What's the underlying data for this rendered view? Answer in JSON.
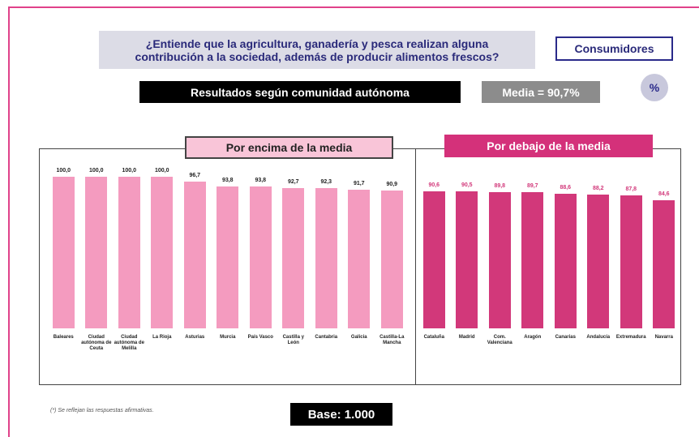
{
  "header": {
    "question": "¿Entiende que la agricultura, ganadería y pesca realizan alguna contribución a la sociedad, además de producir alimentos frescos?",
    "audience": "Consumidores",
    "subtitle": "Resultados según comunidad autónoma",
    "mean": "Media = 90,7%",
    "unit": "%"
  },
  "footnote": "(*) Se reflejan las respuestas afirmativas.",
  "base": "Base: 1.000",
  "chart_data": [
    {
      "type": "bar",
      "title": "Por encima de la media",
      "color": "#f49bbf",
      "categories": [
        "Baleares",
        "Ciudad autónoma de Ceuta",
        "Ciudad autónoma de Melilla",
        "La Rioja",
        "Asturias",
        "Murcia",
        "País Vasco",
        "Castilla y León",
        "Cantabria",
        "Galicia",
        "Castilla-La Mancha"
      ],
      "values": [
        100.0,
        100.0,
        100.0,
        100.0,
        96.7,
        93.8,
        93.8,
        92.7,
        92.3,
        91.7,
        90.9
      ],
      "value_labels": [
        "100,0",
        "100,0",
        "100,0",
        "100,0",
        "96,7",
        "93,8",
        "93,8",
        "92,7",
        "92,3",
        "91,7",
        "90,9"
      ]
    },
    {
      "type": "bar",
      "title": "Por debajo de la media",
      "color": "#d2387a",
      "categories": [
        "Cataluña",
        "Madrid",
        "Com. Valenciana",
        "Aragón",
        "Canarias",
        "Andalucía",
        "Extremadura",
        "Navarra"
      ],
      "values": [
        90.6,
        90.5,
        89.8,
        89.7,
        88.6,
        88.2,
        87.8,
        84.6
      ],
      "value_labels": [
        "90,6",
        "90,5",
        "89,8",
        "89,7",
        "88,6",
        "88,2",
        "87,8",
        "84,6"
      ]
    }
  ]
}
